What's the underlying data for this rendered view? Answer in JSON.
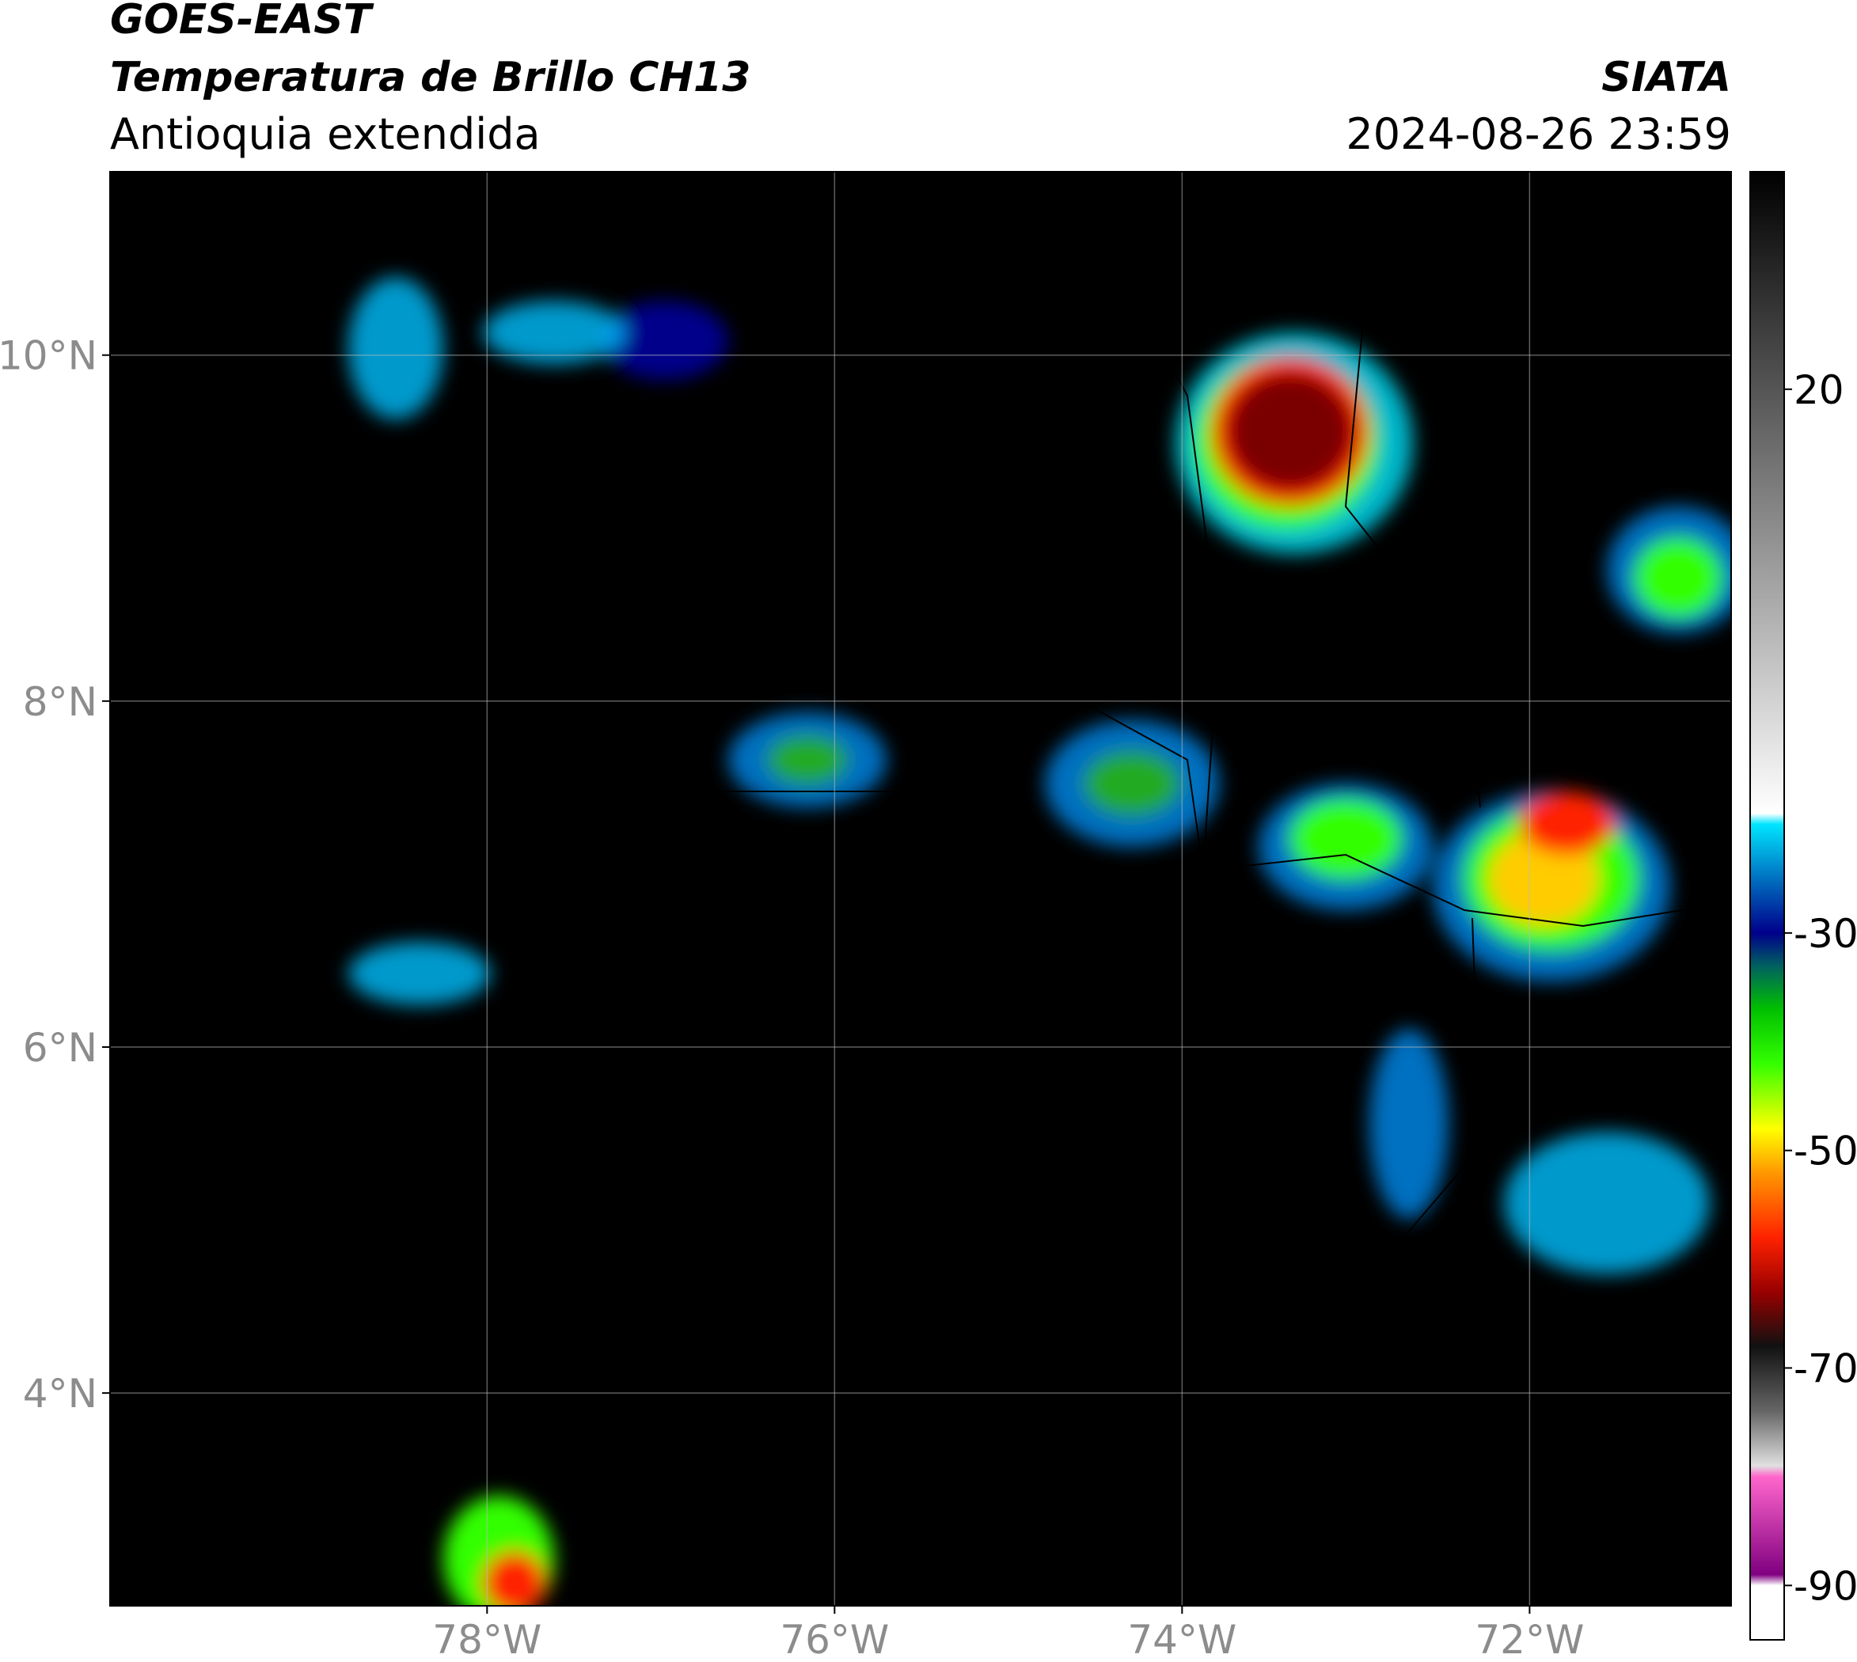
{
  "chart_data": {
    "type": "map",
    "title": "GOES-EAST",
    "subtitle": "Temperatura de Brillo CH13",
    "region": "Antioquia extendida",
    "source": "SIATA",
    "datetime": "2024-08-26 23:59",
    "xlim": [
      -80.17,
      -70.84
    ],
    "ylim": [
      2.77,
      11.06
    ],
    "xticks": [
      {
        "value": -78,
        "label": "78°W"
      },
      {
        "value": -76,
        "label": "76°W"
      },
      {
        "value": -74,
        "label": "74°W"
      },
      {
        "value": -72,
        "label": "72°W"
      }
    ],
    "yticks": [
      {
        "value": 4,
        "label": "4°N"
      },
      {
        "value": 6,
        "label": "6°N"
      },
      {
        "value": 8,
        "label": "8°N"
      },
      {
        "value": 10,
        "label": "10°N"
      }
    ],
    "grid": true,
    "colorbar": {
      "lim": [
        -95,
        40
      ],
      "ticks": [
        20,
        -30,
        -50,
        -70,
        -90
      ],
      "stops": [
        {
          "value": 40,
          "color": "#000000"
        },
        {
          "value": 20,
          "color": "#555555"
        },
        {
          "value": -19,
          "color": "#ffffff"
        },
        {
          "value": -20,
          "color": "#00e5ff"
        },
        {
          "value": -25,
          "color": "#0070c0"
        },
        {
          "value": -30,
          "color": "#00008b"
        },
        {
          "value": -33,
          "color": "#006060"
        },
        {
          "value": -37,
          "color": "#00c000"
        },
        {
          "value": -42,
          "color": "#33ff00"
        },
        {
          "value": -48,
          "color": "#ffff00"
        },
        {
          "value": -52,
          "color": "#ff9900"
        },
        {
          "value": -58,
          "color": "#ff2200"
        },
        {
          "value": -63,
          "color": "#990000"
        },
        {
          "value": -68,
          "color": "#111111"
        },
        {
          "value": -74,
          "color": "#666666"
        },
        {
          "value": -79,
          "color": "#e0e0e0"
        },
        {
          "value": -80,
          "color": "#ff66cc"
        },
        {
          "value": -89,
          "color": "#800080"
        },
        {
          "value": -90,
          "color": "#ffffff"
        },
        {
          "value": -95,
          "color": "#ffffff"
        }
      ]
    }
  }
}
